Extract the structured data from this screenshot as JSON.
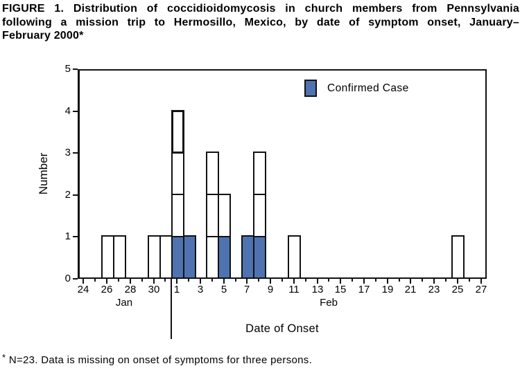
{
  "figure": {
    "title_lines": [
      "FIGURE 1. Distribution of coccidioidomycosis in church members from Pennsylvania",
      "following a mission trip to Hermosillo, Mexico, by date of symptom onset, January–",
      "February 2000*"
    ],
    "footnote": {
      "marker": "*",
      "text": "N=23. Data is missing on onset of symptoms for three persons."
    }
  },
  "chart_data": {
    "type": "bar",
    "subtype": "epidemic-curve-stacked-unit-boxes",
    "title": "FIGURE 1. Distribution of coccidioidomycosis in church members from Pennsylvania following a mission trip to Hermosillo, Mexico, by date of symptom onset, January–February 2000*",
    "xlabel": "Date of Onset",
    "ylabel": "Number",
    "ylim": [
      0,
      5
    ],
    "y_ticks": [
      0,
      1,
      2,
      3,
      4,
      5
    ],
    "x_range": {
      "start": "Jan 24",
      "end": "Feb 27",
      "label_interval_days": 2,
      "minor_tick_interval_days": 1
    },
    "x_tick_labels": [
      "24",
      "26",
      "28",
      "30",
      "1",
      "3",
      "5",
      "7",
      "9",
      "11",
      "13",
      "15",
      "17",
      "19",
      "21",
      "23",
      "25",
      "27"
    ],
    "month_labels": [
      {
        "label": "Jan"
      },
      {
        "label": "Feb"
      }
    ],
    "legend": [
      {
        "label": "Confirmed Case",
        "swatch_color": "#4e73b0"
      }
    ],
    "colors": {
      "confirmed": "#4e73b0",
      "unconfirmed": "#ffffff",
      "axis": "#111111"
    },
    "grid": "off",
    "bars": [
      {
        "date": "Jan 26",
        "total": 1,
        "confirmed": 0
      },
      {
        "date": "Jan 27",
        "total": 1,
        "confirmed": 0
      },
      {
        "date": "Jan 30",
        "total": 1,
        "confirmed": 0
      },
      {
        "date": "Jan 31",
        "total": 1,
        "confirmed": 0
      },
      {
        "date": "Feb 1",
        "total": 4,
        "confirmed": 1,
        "heavy_outline_segment": 4
      },
      {
        "date": "Feb 2",
        "total": 1,
        "confirmed": 1
      },
      {
        "date": "Feb 4",
        "total": 3,
        "confirmed": 0
      },
      {
        "date": "Feb 5",
        "total": 2,
        "confirmed": 1
      },
      {
        "date": "Feb 7",
        "total": 1,
        "confirmed": 1
      },
      {
        "date": "Feb 8",
        "total": 3,
        "confirmed": 1
      },
      {
        "date": "Feb 11",
        "total": 1,
        "confirmed": 0
      },
      {
        "date": "Feb 25",
        "total": 1,
        "confirmed": 0
      }
    ]
  }
}
